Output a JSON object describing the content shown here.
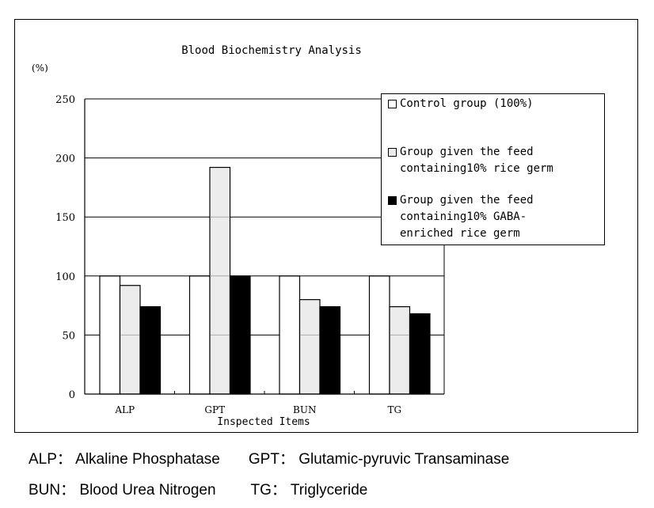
{
  "chart_data": {
    "type": "bar",
    "title": "Blood Biochemistry Analysis",
    "ylabel": "(%)",
    "xlabel": "Inspected Items",
    "ylim": [
      0,
      250
    ],
    "yticks": [
      "0",
      "50",
      "100",
      "150",
      "200",
      "250"
    ],
    "grid": true,
    "legend_placement": "top-right",
    "categories": [
      "ALP",
      "GPT",
      "BUN",
      "TG"
    ],
    "series": [
      {
        "name": "Control group (100%)",
        "color": "#ffffff",
        "values": [
          100,
          100,
          100,
          100
        ]
      },
      {
        "name": "Group given the feed containing10%  rice germ",
        "color": "#ececec",
        "values": [
          92,
          192,
          80,
          74
        ]
      },
      {
        "name": "Group given the feed containing10% GABA-enriched rice germ",
        "color": "#000000",
        "values": [
          74,
          100,
          74,
          68
        ]
      }
    ]
  },
  "legend": {
    "items": [
      {
        "lines": [
          "Control group (100%)"
        ]
      },
      {
        "lines": [
          "Group given the feed",
          "containing10%  rice germ"
        ]
      },
      {
        "lines": [
          "Group given the feed",
          "containing10% GABA-",
          "enriched rice germ"
        ]
      }
    ]
  },
  "notes": {
    "line1": [
      "ALP：  Alkaline Phosphatase",
      "GPT：  Glutamic-pyruvic Transaminase"
    ],
    "line2": [
      "BUN：  Blood Urea Nitrogen",
      "TG：   Triglyceride"
    ]
  }
}
